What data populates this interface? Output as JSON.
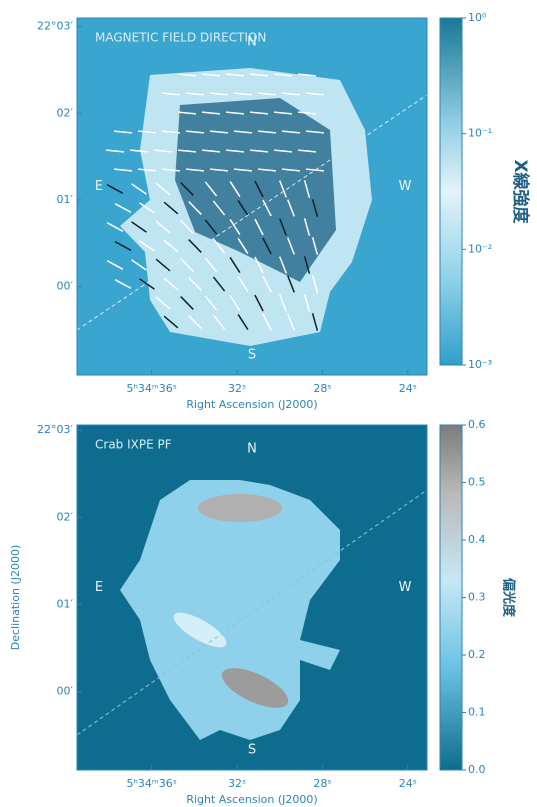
{
  "chart_data": [
    {
      "type": "map",
      "title": "MAGNETIC FIELD DIRECTION",
      "xlabel": "Right Ascension (J2000)",
      "xlim": [
        39.5,
        23.1
      ],
      "xticks": [
        {
          "value": 36,
          "label": "5ʰ34ᵐ36ˢ"
        },
        {
          "value": 32,
          "label": "32ˢ"
        },
        {
          "value": 28,
          "label": "28ˢ"
        },
        {
          "value": 24,
          "label": "24ˢ"
        }
      ],
      "ylim": [
        -1.02,
        3.1
      ],
      "yticks": [
        {
          "value": 3,
          "label": "22°03′"
        },
        {
          "value": 2,
          "label": "02′"
        },
        {
          "value": 1,
          "label": "01′"
        },
        {
          "value": 0,
          "label": "00′"
        }
      ],
      "directions": [
        "N",
        "S",
        "E",
        "W"
      ],
      "colorbar": {
        "label": "X線強度",
        "log": true,
        "lim": [
          0.001,
          1
        ],
        "ticks": [
          {
            "value": 1,
            "label": "10⁰"
          },
          {
            "value": 0.1,
            "label": "10⁻¹"
          },
          {
            "value": 0.01,
            "label": "10⁻²"
          },
          {
            "value": 0.001,
            "label": "10⁻³"
          }
        ]
      }
    },
    {
      "type": "map",
      "title": "Crab IXPE PF",
      "xlabel": "Right Ascension (J2000)",
      "ylabel": "Declination (J2000)",
      "xlim": [
        39.5,
        23.1
      ],
      "xticks": [
        {
          "value": 36,
          "label": "5ʰ34ᵐ36ˢ"
        },
        {
          "value": 32,
          "label": "32ˢ"
        },
        {
          "value": 28,
          "label": "28ˢ"
        },
        {
          "value": 24,
          "label": "24ˢ"
        }
      ],
      "ylim": [
        -0.9,
        3.06
      ],
      "yticks": [
        {
          "value": 3,
          "label": "22°03′"
        },
        {
          "value": 2,
          "label": "02′"
        },
        {
          "value": 1,
          "label": "01′"
        },
        {
          "value": 0,
          "label": "00′"
        }
      ],
      "directions": [
        "N",
        "S",
        "E",
        "W"
      ],
      "colorbar": {
        "label": "偏光度",
        "log": false,
        "lim": [
          0,
          0.6
        ],
        "ticks": [
          {
            "value": 0,
            "label": "0.0"
          },
          {
            "value": 0.1,
            "label": "0.1"
          },
          {
            "value": 0.2,
            "label": "0.2"
          },
          {
            "value": 0.3,
            "label": "0.3"
          },
          {
            "value": 0.4,
            "label": "0.4"
          },
          {
            "value": 0.5,
            "label": "0.5"
          },
          {
            "value": 0.6,
            "label": "0.6"
          }
        ]
      }
    }
  ]
}
